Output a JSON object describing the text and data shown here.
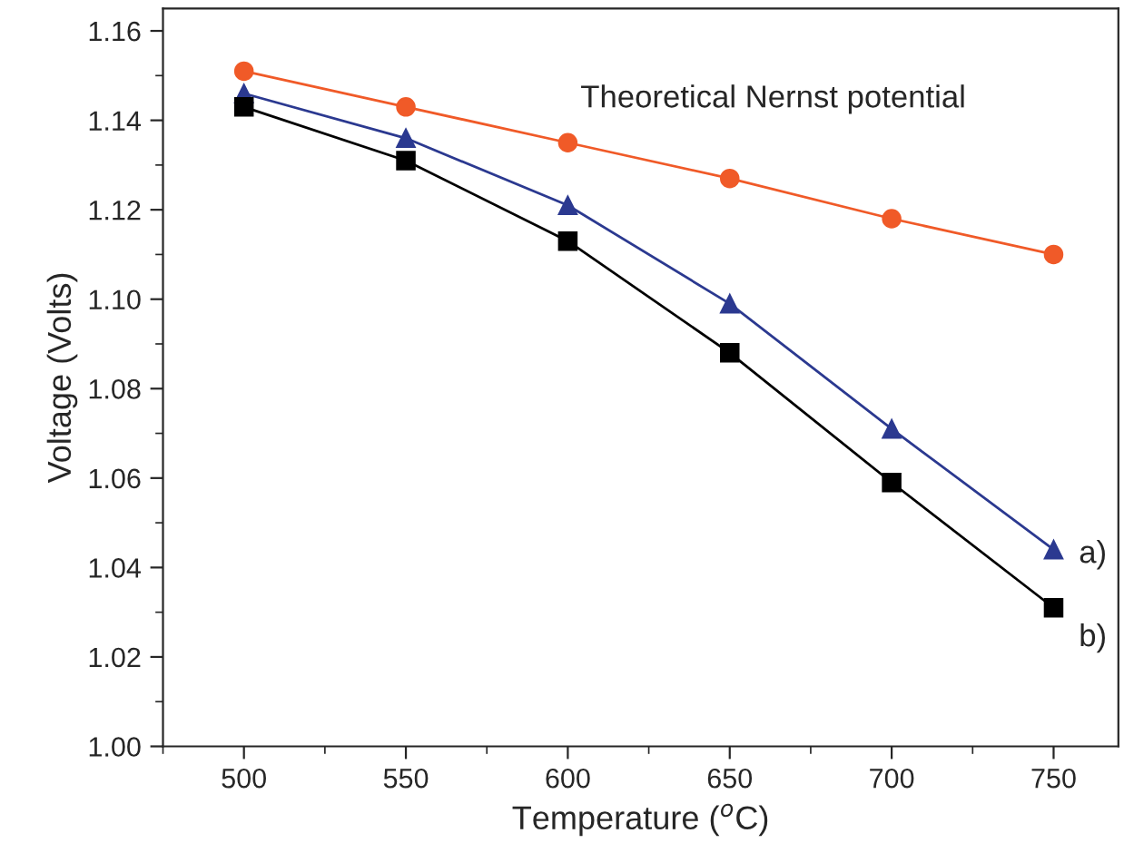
{
  "chart_data": {
    "type": "line",
    "xlabel": "Temperature ($^{o}$C)",
    "ylabel": "Voltage (Volts)",
    "x": [
      500,
      550,
      600,
      650,
      700,
      750
    ],
    "series": [
      {
        "name": "Theoretical Nernst potential",
        "color": "#f05a28",
        "marker": "circle",
        "values": [
          1.151,
          1.143,
          1.135,
          1.127,
          1.118,
          1.11
        ]
      },
      {
        "name": "a)",
        "color": "#2b3990",
        "marker": "triangle",
        "values": [
          1.146,
          1.136,
          1.121,
          1.099,
          1.071,
          1.044
        ]
      },
      {
        "name": "b)",
        "color": "#000000",
        "marker": "square",
        "values": [
          1.143,
          1.131,
          1.113,
          1.088,
          1.059,
          1.031
        ]
      }
    ],
    "xlim": [
      475,
      770
    ],
    "ylim": [
      1.0,
      1.165
    ],
    "xticks": [
      500,
      550,
      600,
      650,
      700,
      750
    ],
    "yticks": [
      {
        "value": 1.0,
        "label": "1.00"
      },
      {
        "value": 1.02,
        "label": "1.02"
      },
      {
        "value": 1.04,
        "label": "1.04"
      },
      {
        "value": 1.06,
        "label": "1.06"
      },
      {
        "value": 1.08,
        "label": "1.08"
      },
      {
        "value": 1.1,
        "label": "1.10"
      },
      {
        "value": 1.12,
        "label": "1.12"
      },
      {
        "value": 1.14,
        "label": "1.14"
      },
      {
        "value": 1.16,
        "label": "1.16"
      }
    ],
    "grid": false,
    "legend": false
  }
}
